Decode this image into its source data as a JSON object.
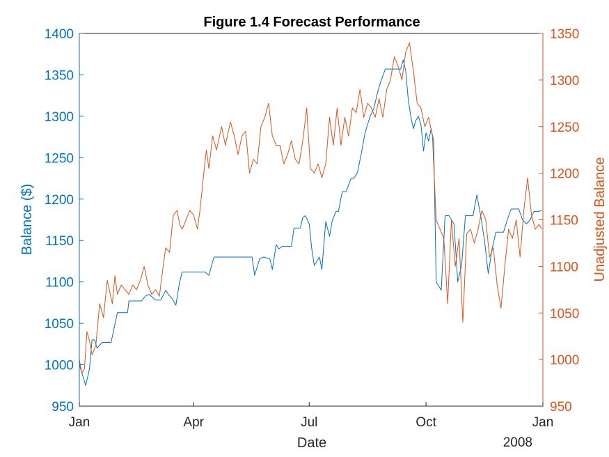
{
  "chart_data": {
    "type": "line",
    "title": "Figure 1.4 Forecast Performance",
    "xlabel": "Date",
    "x_year_label": "2008",
    "x_range": [
      "2007-01-01",
      "2008-01-01"
    ],
    "x_ticks": [
      {
        "date": "2007-01-01",
        "label": "Jan"
      },
      {
        "date": "2007-04-01",
        "label": "Apr"
      },
      {
        "date": "2007-07-01",
        "label": "Jul"
      },
      {
        "date": "2007-10-01",
        "label": "Oct"
      },
      {
        "date": "2008-01-01",
        "label": "Jan"
      }
    ],
    "left_axis": {
      "label": "Balance ($)",
      "ylim": [
        950,
        1400
      ],
      "ticks": [
        950,
        1000,
        1050,
        1100,
        1150,
        1200,
        1250,
        1300,
        1350,
        1400
      ],
      "color": "#0072BD"
    },
    "right_axis": {
      "label": "Unadjusted Balance",
      "ylim": [
        950,
        1350
      ],
      "ticks": [
        950,
        1000,
        1050,
        1100,
        1150,
        1200,
        1250,
        1300,
        1350
      ],
      "color": "#D95319"
    },
    "grid": false,
    "series": [
      {
        "axis": "left",
        "color": "#0072BD",
        "x": [
          "2007-01-01",
          "2007-01-04",
          "2007-01-06",
          "2007-01-09",
          "2007-01-11",
          "2007-01-13",
          "2007-01-15",
          "2007-01-19",
          "2007-01-22",
          "2007-01-26",
          "2007-01-31",
          "2007-02-02",
          "2007-02-08",
          "2007-02-09",
          "2007-02-13",
          "2007-02-15",
          "2007-02-19",
          "2007-02-22",
          "2007-02-25",
          "2007-03-02",
          "2007-03-06",
          "2007-03-10",
          "2007-03-12",
          "2007-03-15",
          "2007-03-18",
          "2007-03-21",
          "2007-03-23",
          "2007-03-25",
          "2007-03-28",
          "2007-04-04",
          "2007-04-10",
          "2007-04-13",
          "2007-04-17",
          "2007-05-17",
          "2007-05-19",
          "2007-05-23",
          "2007-05-26",
          "2007-05-31",
          "2007-06-02",
          "2007-06-05",
          "2007-06-07",
          "2007-06-10",
          "2007-06-12",
          "2007-06-17",
          "2007-06-19",
          "2007-06-21",
          "2007-06-24",
          "2007-06-26",
          "2007-06-28",
          "2007-07-01",
          "2007-07-03",
          "2007-07-05",
          "2007-07-09",
          "2007-07-11",
          "2007-07-14",
          "2007-07-17",
          "2007-07-19",
          "2007-07-22",
          "2007-07-24",
          "2007-07-27",
          "2007-07-30",
          "2007-08-03",
          "2007-08-05",
          "2007-08-08",
          "2007-08-11",
          "2007-08-14",
          "2007-08-18",
          "2007-08-21",
          "2007-08-24",
          "2007-08-27",
          "2007-08-30",
          "2007-09-01",
          "2007-09-03",
          "2007-09-05",
          "2007-09-07",
          "2007-09-09",
          "2007-09-11",
          "2007-09-13",
          "2007-09-15",
          "2007-09-17",
          "2007-09-19",
          "2007-09-21",
          "2007-09-23",
          "2007-09-25",
          "2007-09-27",
          "2007-09-29",
          "2007-10-01",
          "2007-10-03",
          "2007-10-05",
          "2007-10-07",
          "2007-10-09",
          "2007-10-13",
          "2007-10-16",
          "2007-10-19",
          "2007-10-23",
          "2007-10-26",
          "2007-10-29",
          "2007-11-01",
          "2007-11-04",
          "2007-11-07",
          "2007-11-10",
          "2007-11-13",
          "2007-11-16",
          "2007-11-19",
          "2007-11-22",
          "2007-11-25",
          "2007-11-28",
          "2007-12-01",
          "2007-12-04",
          "2007-12-07",
          "2007-12-10",
          "2007-12-13",
          "2007-12-16",
          "2007-12-19",
          "2007-12-22",
          "2007-12-25",
          "2007-12-28",
          "2007-12-31"
        ],
        "values": [
          1000,
          985,
          975,
          995,
          1030,
          1030,
          1020,
          1027,
          1027,
          1027,
          1063,
          1063,
          1063,
          1077,
          1077,
          1077,
          1077,
          1083,
          1085,
          1078,
          1078,
          1090,
          1085,
          1080,
          1072,
          1100,
          1112,
          1112,
          1112,
          1112,
          1112,
          1108,
          1130,
          1130,
          1108,
          1128,
          1130,
          1128,
          1115,
          1145,
          1140,
          1143,
          1143,
          1143,
          1165,
          1165,
          1165,
          1178,
          1180,
          1170,
          1140,
          1120,
          1130,
          1115,
          1173,
          1155,
          1173,
          1185,
          1185,
          1209,
          1209,
          1225,
          1225,
          1232,
          1255,
          1280,
          1300,
          1310,
          1330,
          1345,
          1357,
          1357,
          1357,
          1357,
          1357,
          1357,
          1357,
          1368,
          1355,
          1320,
          1300,
          1285,
          1295,
          1300,
          1290,
          1258,
          1280,
          1270,
          1285,
          1270,
          1100,
          1090,
          1180,
          1180,
          1170,
          1100,
          1120,
          1180,
          1180,
          1180,
          1205,
          1180,
          1150,
          1110,
          1140,
          1160,
          1160,
          1160,
          1175,
          1188,
          1188,
          1188,
          1175,
          1170,
          1175,
          1185,
          1185,
          1186
        ]
      },
      {
        "axis": "right",
        "color": "#D95319",
        "x": [
          "2007-01-01",
          "2007-01-03",
          "2007-01-05",
          "2007-01-07",
          "2007-01-09",
          "2007-01-11",
          "2007-01-14",
          "2007-01-17",
          "2007-01-20",
          "2007-01-23",
          "2007-01-27",
          "2007-01-29",
          "2007-01-31",
          "2007-02-03",
          "2007-02-06",
          "2007-02-09",
          "2007-02-12",
          "2007-02-15",
          "2007-02-18",
          "2007-02-21",
          "2007-02-24",
          "2007-02-27",
          "2007-03-02",
          "2007-03-05",
          "2007-03-08",
          "2007-03-10",
          "2007-03-13",
          "2007-03-16",
          "2007-03-19",
          "2007-03-21",
          "2007-03-23",
          "2007-03-26",
          "2007-03-29",
          "2007-04-01",
          "2007-04-04",
          "2007-04-06",
          "2007-04-09",
          "2007-04-11",
          "2007-04-13",
          "2007-04-16",
          "2007-04-19",
          "2007-04-23",
          "2007-04-26",
          "2007-04-30",
          "2007-05-03",
          "2007-05-06",
          "2007-05-09",
          "2007-05-12",
          "2007-05-15",
          "2007-05-18",
          "2007-05-21",
          "2007-05-24",
          "2007-05-27",
          "2007-05-30",
          "2007-06-02",
          "2007-06-05",
          "2007-06-08",
          "2007-06-11",
          "2007-06-14",
          "2007-06-17",
          "2007-06-20",
          "2007-06-23",
          "2007-06-26",
          "2007-06-29",
          "2007-07-02",
          "2007-07-05",
          "2007-07-08",
          "2007-07-11",
          "2007-07-14",
          "2007-07-17",
          "2007-07-20",
          "2007-07-23",
          "2007-07-26",
          "2007-07-29",
          "2007-08-01",
          "2007-08-04",
          "2007-08-07",
          "2007-08-10",
          "2007-08-13",
          "2007-08-16",
          "2007-08-19",
          "2007-08-22",
          "2007-08-25",
          "2007-08-28",
          "2007-08-31",
          "2007-09-03",
          "2007-09-06",
          "2007-09-09",
          "2007-09-12",
          "2007-09-15",
          "2007-09-18",
          "2007-09-21",
          "2007-09-24",
          "2007-09-27",
          "2007-09-30",
          "2007-10-03",
          "2007-10-06",
          "2007-10-09",
          "2007-10-12",
          "2007-10-15",
          "2007-10-18",
          "2007-10-21",
          "2007-10-24",
          "2007-10-27",
          "2007-10-30",
          "2007-11-02",
          "2007-11-05",
          "2007-11-08",
          "2007-11-11",
          "2007-11-14",
          "2007-11-17",
          "2007-11-20",
          "2007-11-23",
          "2007-11-26",
          "2007-11-29",
          "2007-12-02",
          "2007-12-05",
          "2007-12-08",
          "2007-12-11",
          "2007-12-14",
          "2007-12-17",
          "2007-12-20",
          "2007-12-23",
          "2007-12-26",
          "2007-12-29",
          "2007-12-31"
        ],
        "values": [
          1000,
          985,
          990,
          1030,
          1020,
          1005,
          1015,
          1060,
          1045,
          1085,
          1060,
          1090,
          1070,
          1080,
          1075,
          1070,
          1080,
          1075,
          1085,
          1100,
          1080,
          1070,
          1075,
          1068,
          1100,
          1120,
          1115,
          1155,
          1160,
          1145,
          1140,
          1150,
          1160,
          1155,
          1140,
          1160,
          1200,
          1225,
          1205,
          1240,
          1225,
          1250,
          1230,
          1255,
          1240,
          1220,
          1240,
          1245,
          1200,
          1215,
          1210,
          1250,
          1260,
          1275,
          1240,
          1230,
          1230,
          1210,
          1220,
          1235,
          1215,
          1210,
          1235,
          1270,
          1205,
          1200,
          1210,
          1195,
          1210,
          1260,
          1230,
          1270,
          1230,
          1260,
          1240,
          1270,
          1265,
          1290,
          1260,
          1275,
          1270,
          1260,
          1280,
          1260,
          1290,
          1300,
          1325,
          1315,
          1300,
          1330,
          1340,
          1310,
          1275,
          1270,
          1250,
          1260,
          1240,
          1150,
          1140,
          1130,
          1060,
          1150,
          1100,
          1130,
          1040,
          1135,
          1140,
          1125,
          1140,
          1160,
          1150,
          1110,
          1120,
          1080,
          1055,
          1100,
          1140,
          1130,
          1150,
          1110,
          1160,
          1195,
          1155,
          1140,
          1145,
          1140
        ]
      }
    ]
  }
}
